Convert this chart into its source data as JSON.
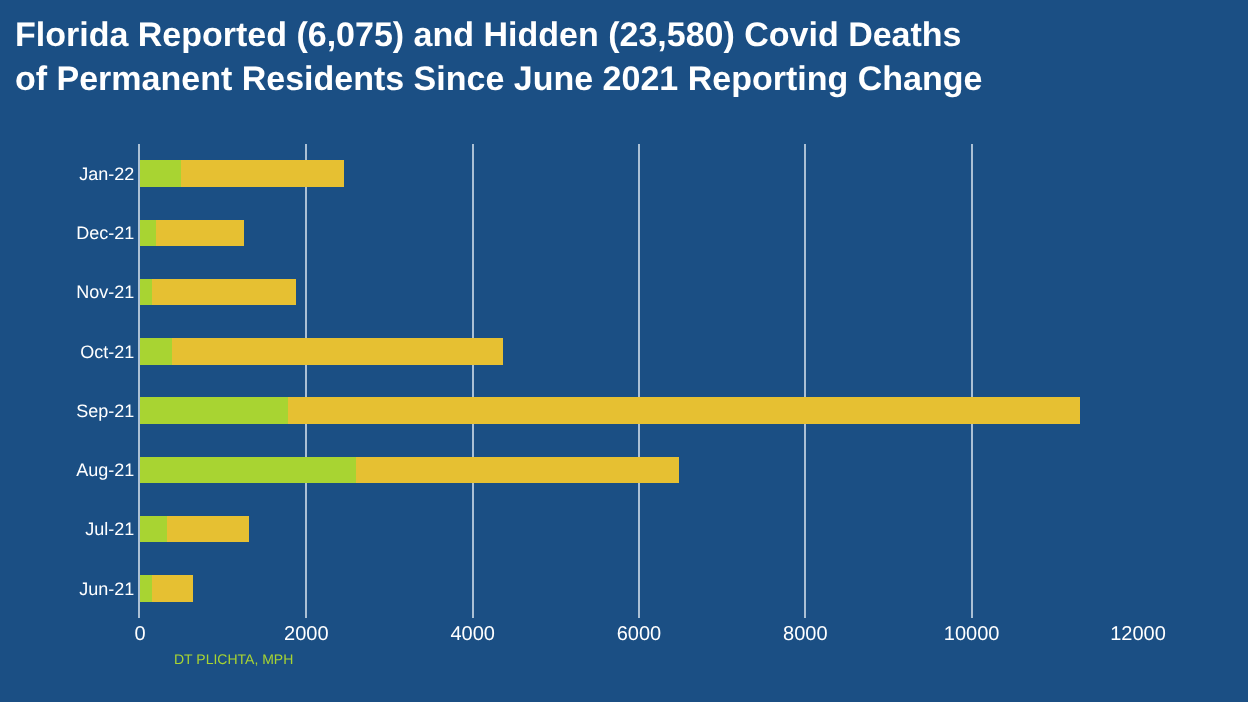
{
  "chart_data": {
    "type": "bar",
    "orientation": "horizontal",
    "stacked": true,
    "title": "Florida Reported (6,075) and Hidden (23,580) Covid Deaths\nof Permanent Residents Since June 2021 Reporting Change",
    "categories": [
      "Jan-22",
      "Dec-21",
      "Nov-21",
      "Oct-21",
      "Sep-21",
      "Aug-21",
      "Jul-21",
      "Jun-21"
    ],
    "series": [
      {
        "color": "#a8d432",
        "values": [
          490,
          190,
          150,
          390,
          1780,
          2600,
          320,
          150
        ]
      },
      {
        "color": "#e6c032",
        "values": [
          1960,
          1060,
          1730,
          3970,
          9520,
          3880,
          990,
          490
        ]
      }
    ],
    "xlim": [
      0,
      12000
    ],
    "xticks": [
      0,
      2000,
      4000,
      6000,
      8000,
      10000,
      12000
    ],
    "grid": "x",
    "annotations": [
      "DT PLICHTA, MPH"
    ]
  }
}
